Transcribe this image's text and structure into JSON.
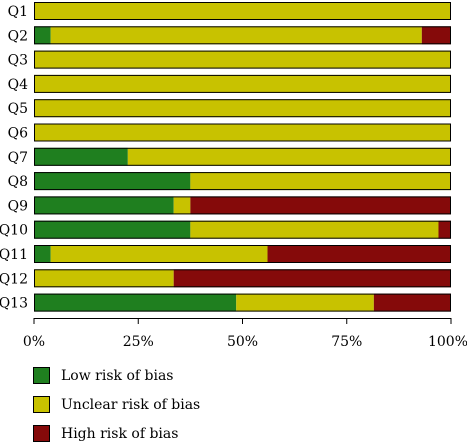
{
  "chart_data": {
    "type": "bar",
    "orientation": "horizontal",
    "stacked": true,
    "categories": [
      "Q1",
      "Q2",
      "Q3",
      "Q4",
      "Q5",
      "Q6",
      "Q7",
      "Q8",
      "Q9",
      "Q10",
      "Q11",
      "Q12",
      "Q13"
    ],
    "series": [
      {
        "name": "Low risk of bias",
        "color": "#1f7f1f",
        "values": [
          0,
          4,
          0,
          0,
          0,
          0,
          22.5,
          37.5,
          33.5,
          37.5,
          4,
          0,
          48.5
        ]
      },
      {
        "name": "Unclear risk of bias",
        "color": "#c8c200",
        "values": [
          100,
          89,
          100,
          100,
          100,
          100,
          77.5,
          62.5,
          4,
          59.5,
          52,
          33.5,
          33
        ]
      },
      {
        "name": "High risk of bias",
        "color": "#850a0a",
        "values": [
          0,
          7,
          0,
          0,
          0,
          0,
          0,
          0,
          62.5,
          3,
          44,
          66.5,
          18.5
        ]
      }
    ],
    "x_ticks": [
      "0%",
      "25%",
      "50%",
      "75%",
      "100%"
    ],
    "xlim": [
      0,
      100
    ],
    "legend_position": "bottom-left"
  },
  "legend": [
    {
      "label": "Low risk of bias",
      "color": "#1f7f1f"
    },
    {
      "label": "Unclear risk of bias",
      "color": "#c8c200"
    },
    {
      "label": "High risk of bias",
      "color": "#850a0a"
    }
  ]
}
